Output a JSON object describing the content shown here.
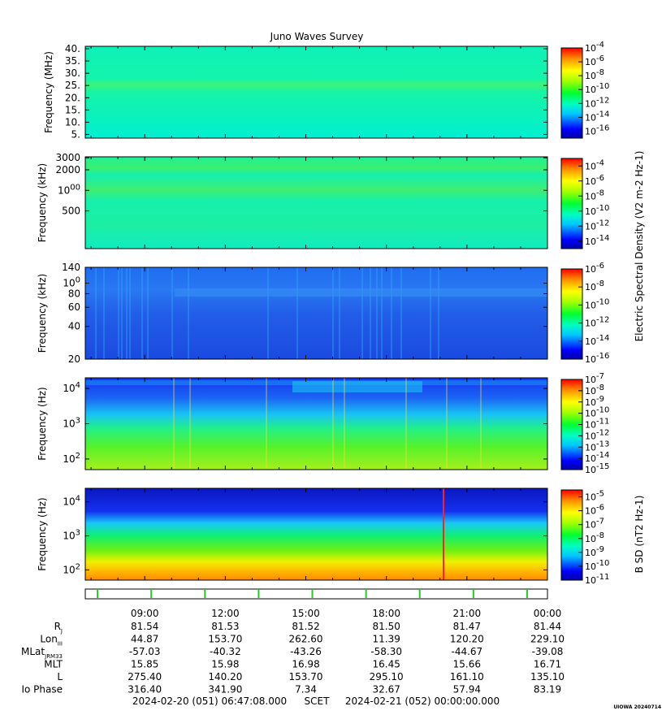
{
  "chart_data": {
    "type": "heatmap",
    "title": "Juno Waves Survey",
    "panels": [
      {
        "ylabel": "Frequency (MHz)",
        "yscale": "linear",
        "yticks": [
          "5.",
          "10.",
          "15.",
          "20.",
          "25.",
          "30.",
          "35.",
          "40."
        ],
        "ylim": [
          3.5,
          41
        ],
        "colorbar": [
          "10-16",
          "10-14",
          "10-12",
          "10-10",
          "10-8",
          "10-6",
          "10-4"
        ],
        "colorbar_range": [
          -17,
          -4
        ],
        "colorbar_label": ""
      },
      {
        "ylabel": "Frequency (kHz)",
        "yscale": "log",
        "yticks": [
          "500",
          "1000",
          "2000",
          "3000"
        ],
        "ylim": [
          140,
          3100
        ],
        "colorbar": [
          "10-14",
          "10-12",
          "10-10",
          "10-8",
          "10-6",
          "10-4"
        ],
        "colorbar_range": [
          -15,
          -3
        ],
        "colorbar_label": ""
      },
      {
        "ylabel": "Frequency (kHz)",
        "yscale": "log",
        "yticks": [
          "20",
          "40",
          "60",
          "80",
          "100",
          "140"
        ],
        "ylim": [
          20,
          140
        ],
        "colorbar": [
          "10-16",
          "10-14",
          "10-12",
          "10-10",
          "10-8",
          "10-6"
        ],
        "colorbar_range": [
          -16,
          -6
        ],
        "colorbar_label": ""
      },
      {
        "ylabel": "Frequency (Hz)",
        "yscale": "log",
        "yticks": [
          "10^2",
          "10^3",
          "10^4"
        ],
        "ylim": [
          50,
          20000
        ],
        "colorbar": [
          "10-15",
          "10-14",
          "10-13",
          "10-12",
          "10-11",
          "10-10",
          "10-9",
          "10-8",
          "10-7"
        ],
        "colorbar_range": [
          -15,
          -7
        ],
        "colorbar_label": ""
      },
      {
        "ylabel": "Frequency (Hz)",
        "yscale": "log",
        "yticks": [
          "10^2",
          "10^3",
          "10^4"
        ],
        "ylim": [
          50,
          25000
        ],
        "colorbar": [
          "10-11",
          "10-10",
          "10-9",
          "10-8",
          "10-7",
          "10-6",
          "10-5"
        ],
        "colorbar_range": [
          -11,
          -4.5
        ],
        "colorbar_label": "B SD (nT2 Hz-1)"
      }
    ],
    "shared_colorbar_label": "Electric Spectral Density (V2 m-2 Hz-1)",
    "x_time_ticks": [
      "09:00",
      "12:00",
      "15:00",
      "18:00",
      "21:00",
      "00:00"
    ],
    "xlim_hours": [
      6.785,
      24.0
    ],
    "ephemeris": [
      {
        "label": "R",
        "sub": "J",
        "values": [
          "81.54",
          "81.53",
          "81.52",
          "81.50",
          "81.47",
          "81.44"
        ]
      },
      {
        "label": "Lon",
        "sub": "III",
        "values": [
          "44.87",
          "153.70",
          "262.60",
          "11.39",
          "120.20",
          "229.10"
        ]
      },
      {
        "label": "MLat",
        "sub": "JRM33",
        "values": [
          "-57.03",
          "-40.32",
          "-43.26",
          "-58.30",
          "-44.67",
          "-39.08"
        ]
      },
      {
        "label": "MLT",
        "sub": "",
        "values": [
          "15.85",
          "15.98",
          "16.98",
          "16.45",
          "15.66",
          "16.71"
        ]
      },
      {
        "label": "L",
        "sub": "",
        "values": [
          "275.40",
          "140.20",
          "153.70",
          "295.10",
          "161.10",
          "135.10"
        ]
      },
      {
        "label": "Io Phase",
        "sub": "",
        "values": [
          "316.40",
          "341.90",
          "7.34",
          "32.67",
          "57.94",
          "83.19"
        ]
      }
    ]
  },
  "footer": {
    "start": "2024-02-20 (051) 06:47:08.000",
    "scet": "SCET",
    "end": "2024-02-21 (052) 00:00:00.000",
    "credit": "UIOWA 20240714"
  }
}
